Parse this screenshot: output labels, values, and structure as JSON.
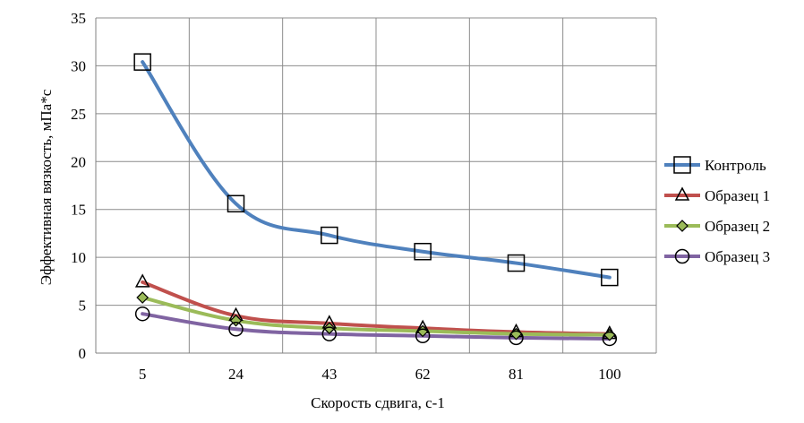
{
  "chart_data": {
    "type": "line",
    "xlabel": "Скорость сдвига, с-1",
    "ylabel": "Эффективная вязкость, мПа*с",
    "categories": [
      "5",
      "24",
      "43",
      "62",
      "81",
      "100"
    ],
    "ylim": [
      0,
      35
    ],
    "yticks": [
      0,
      5,
      10,
      15,
      20,
      25,
      30,
      35
    ],
    "grid": true,
    "legend_position": "right",
    "series": [
      {
        "name": "Контроль",
        "values": [
          30.4,
          15.6,
          12.3,
          10.6,
          9.4,
          7.9
        ],
        "color": "#4f81bd",
        "marker": "square"
      },
      {
        "name": "Образец 1",
        "values": [
          7.4,
          3.9,
          3.1,
          2.6,
          2.2,
          2.0
        ],
        "color": "#c0504d",
        "marker": "triangle"
      },
      {
        "name": "Образец 2",
        "values": [
          5.8,
          3.4,
          2.6,
          2.3,
          2.0,
          1.9
        ],
        "color": "#9bbb59",
        "marker": "diamond"
      },
      {
        "name": "Образец 3",
        "values": [
          4.1,
          2.5,
          2.0,
          1.8,
          1.6,
          1.5
        ],
        "color": "#8064a2",
        "marker": "circle"
      }
    ]
  }
}
